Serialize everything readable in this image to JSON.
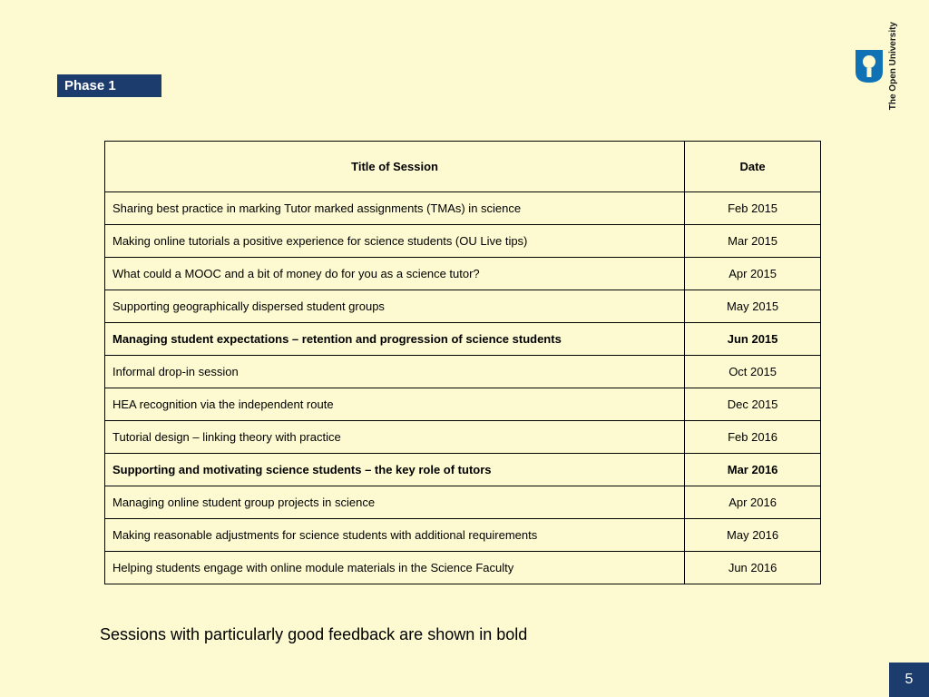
{
  "colors": {
    "background": "#fdfad1",
    "badge_bg": "#1c3c6e",
    "badge_text": "#ffffff",
    "logo_blue": "#0e72b5",
    "table_border": "#000000",
    "text": "#000000",
    "pagenum_bg": "#1c3c6e"
  },
  "phase_label": "Phase 1",
  "logo_text": "The Open\nUniversity",
  "table": {
    "columns": [
      "Title of Session",
      "Date"
    ],
    "rows": [
      {
        "title": "Sharing best practice in marking Tutor marked assignments (TMAs) in science",
        "date": "Feb 2015",
        "bold": false
      },
      {
        "title": "Making online tutorials a positive experience for science students (OU Live tips)",
        "date": "Mar 2015",
        "bold": false
      },
      {
        "title": "What could a MOOC and a bit of money do for you as a science tutor?",
        "date": "Apr 2015",
        "bold": false
      },
      {
        "title": "Supporting geographically dispersed student groups",
        "date": "May 2015",
        "bold": false
      },
      {
        "title": "Managing student expectations – retention and progression of science students",
        "date": "Jun 2015",
        "bold": true
      },
      {
        "title": "Informal drop-in session",
        "date": "Oct 2015",
        "bold": false
      },
      {
        "title": "HEA recognition via the independent route",
        "date": "Dec 2015",
        "bold": false
      },
      {
        "title": "Tutorial design – linking theory with practice",
        "date": "Feb 2016",
        "bold": false
      },
      {
        "title": "Supporting and motivating science students – the key role of tutors",
        "date": "Mar 2016",
        "bold": true
      },
      {
        "title": "Managing online student group projects in science",
        "date": "Apr 2016",
        "bold": false
      },
      {
        "title": "Making reasonable adjustments for science students with additional requirements",
        "date": "May 2016",
        "bold": false
      },
      {
        "title": "Helping students engage with online module materials in the Science Faculty",
        "date": "Jun 2016",
        "bold": false
      }
    ]
  },
  "footnote": "Sessions with particularly good feedback are shown in bold",
  "page_number": "5"
}
